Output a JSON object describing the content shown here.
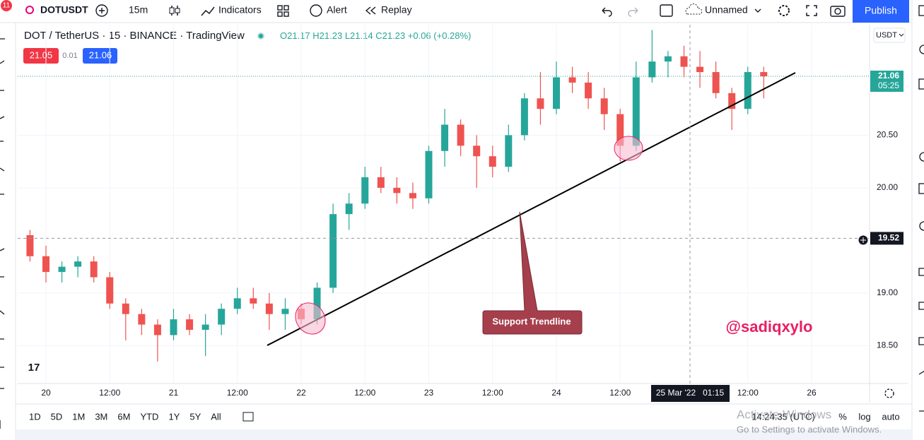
{
  "header": {
    "badge": "11",
    "symbol": "DOTUSDT",
    "interval": "15m",
    "indicators": "Indicators",
    "alert": "Alert",
    "replay": "Replay",
    "layout_name": "Unnamed",
    "publish": "Publish"
  },
  "legend": {
    "title": "DOT / TetherUS · 15 · BINANCE · TradingView",
    "open": "O21.17",
    "high": "H21.23",
    "low": "L21.14",
    "close": "C21.23",
    "change": "+0.06 (+0.28%)",
    "bid": 21.05,
    "spread": 0.01,
    "ask": 21.06
  },
  "currency": "USDT",
  "chart_data": {
    "type": "candlestick",
    "categories": [
      null,
      null,
      "20",
      null,
      null,
      null,
      "12:00",
      null,
      null,
      null,
      "21",
      null,
      null,
      null,
      "12:00",
      null,
      null,
      null,
      "22",
      null,
      null,
      null,
      "12:00",
      null,
      null,
      null,
      "23",
      null,
      null,
      null,
      "12:00",
      null,
      null,
      null,
      "24",
      null,
      null,
      null,
      "12:00",
      null,
      null,
      null,
      null,
      null,
      null,
      null,
      "12:00",
      null,
      null,
      null,
      "26"
    ],
    "open": [
      19.6,
      19.55,
      19.35,
      19.2,
      19.25,
      19.3,
      19.15,
      18.9,
      18.8,
      18.7,
      18.6,
      18.75,
      18.65,
      18.7,
      18.85,
      18.95,
      18.9,
      18.8,
      18.85,
      18.75,
      19.05,
      19.75,
      19.85,
      20.1,
      20.0,
      19.95,
      19.9,
      20.35,
      20.6,
      20.4,
      20.3,
      20.2,
      20.5,
      20.85,
      20.75,
      21.05,
      21.0,
      20.85,
      20.7,
      20.4,
      21.05,
      21.2,
      21.25,
      21.15,
      21.1,
      20.9,
      20.75,
      21.1,
      null,
      null,
      null
    ],
    "high": [
      19.75,
      19.6,
      19.45,
      19.3,
      19.35,
      19.35,
      19.2,
      18.95,
      18.85,
      18.75,
      18.85,
      18.8,
      18.8,
      18.9,
      19.05,
      19.05,
      19.0,
      18.95,
      18.9,
      19.1,
      19.85,
      19.95,
      20.2,
      20.2,
      20.1,
      20.05,
      20.4,
      20.75,
      20.65,
      20.5,
      20.4,
      20.6,
      20.9,
      21.1,
      21.2,
      21.15,
      21.1,
      20.95,
      20.75,
      21.2,
      21.5,
      21.3,
      21.35,
      21.3,
      21.2,
      20.95,
      21.15,
      21.15,
      null,
      null,
      null
    ],
    "low": [
      19.45,
      19.3,
      19.1,
      19.1,
      19.15,
      19.1,
      18.85,
      18.55,
      18.6,
      18.35,
      18.55,
      18.6,
      18.4,
      18.6,
      18.8,
      18.85,
      18.65,
      18.65,
      18.7,
      18.7,
      19.0,
      19.6,
      19.8,
      19.95,
      19.85,
      19.8,
      19.85,
      20.2,
      20.3,
      20.0,
      20.1,
      20.15,
      20.45,
      20.6,
      20.7,
      20.9,
      20.75,
      20.55,
      20.25,
      20.35,
      21.0,
      21.05,
      21.05,
      20.95,
      20.85,
      20.55,
      20.7,
      20.85,
      null,
      null,
      null
    ],
    "close": [
      19.55,
      19.35,
      19.2,
      19.25,
      19.3,
      19.15,
      18.9,
      18.8,
      18.7,
      18.6,
      18.75,
      18.65,
      18.7,
      18.85,
      18.95,
      18.9,
      18.8,
      18.85,
      18.75,
      19.05,
      19.75,
      19.85,
      20.1,
      20.0,
      19.95,
      19.9,
      20.35,
      20.6,
      20.4,
      20.3,
      20.2,
      20.5,
      20.85,
      20.75,
      21.05,
      21.0,
      20.85,
      20.7,
      20.4,
      21.05,
      21.2,
      21.25,
      21.15,
      21.1,
      20.9,
      20.75,
      21.1,
      21.06,
      null,
      null,
      null
    ],
    "up_color": "#26a69a",
    "down_color": "#ef5350",
    "ylim": [
      18.14,
      21.55
    ],
    "yticks": [
      {
        "value": 18.5,
        "label": "18.50"
      },
      {
        "value": 19,
        "label": "19.00"
      },
      {
        "value": 20,
        "label": "20.00"
      },
      {
        "value": 20.5,
        "label": "20.50"
      }
    ],
    "last_price": {
      "value": 21.06,
      "countdown": "05:25"
    },
    "crosshair": {
      "price": 19.52,
      "time_label": "25 Mar '22   01:15"
    },
    "annotations": {
      "callout": "Support Trendline",
      "watermark": "@sadiqxylo"
    }
  },
  "footer": {
    "ranges": [
      "1D",
      "5D",
      "1M",
      "3M",
      "6M",
      "YTD",
      "1Y",
      "5Y",
      "All"
    ],
    "clock": "14:24:35 (UTC)",
    "percent": "%",
    "log": "log",
    "auto": "auto",
    "activate_title": "Activate Windows",
    "activate_sub": "Go to Settings to activate Windows."
  }
}
